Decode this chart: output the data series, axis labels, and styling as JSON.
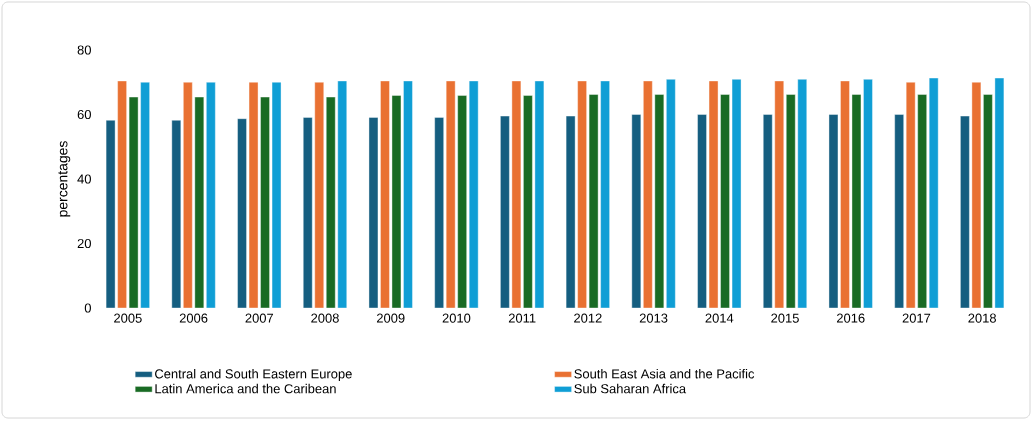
{
  "chart_data": {
    "type": "bar",
    "ylabel": "percentages",
    "categories": [
      "2005",
      "2006",
      "2007",
      "2008",
      "2009",
      "2010",
      "2011",
      "2012",
      "2013",
      "2014",
      "2015",
      "2016",
      "2017",
      "2018"
    ],
    "series": [
      {
        "name": "Central and South Eastern Europe",
        "color": "#155e80",
        "values": [
          58.2,
          58.2,
          58.7,
          59.1,
          59.1,
          59.1,
          59.5,
          59.5,
          60.0,
          60.0,
          60.0,
          60.0,
          60.0,
          59.5
        ]
      },
      {
        "name": "South East Asia and the Pacific",
        "color": "#e97132",
        "values": [
          70.4,
          70.0,
          70.0,
          70.0,
          70.4,
          70.4,
          70.4,
          70.4,
          70.4,
          70.4,
          70.4,
          70.4,
          70.0,
          70.0
        ]
      },
      {
        "name": "Latin America and the Caribean",
        "color": "#196b24",
        "values": [
          65.4,
          65.4,
          65.4,
          65.4,
          65.9,
          65.9,
          65.9,
          66.2,
          66.2,
          66.2,
          66.2,
          66.2,
          66.2,
          66.2
        ]
      },
      {
        "name": "Sub Saharan Africa",
        "color": "#0f9ed5",
        "values": [
          70.0,
          70.0,
          70.0,
          70.4,
          70.4,
          70.4,
          70.4,
          70.4,
          70.9,
          70.9,
          70.9,
          70.9,
          71.3,
          71.3
        ]
      }
    ],
    "ylim": [
      0,
      80
    ],
    "yticks": [
      0,
      20,
      40,
      60,
      80
    ],
    "legend": "bottom"
  }
}
